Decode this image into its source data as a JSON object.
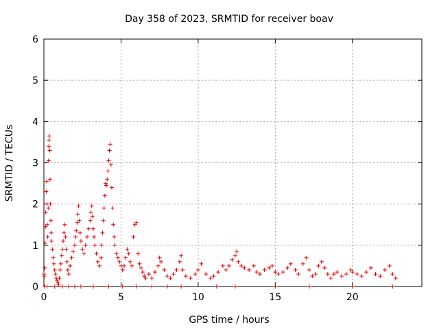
{
  "chart_data": {
    "type": "scatter",
    "title": "Day 358 of 2023, SRMTID for receiver boav",
    "xlabel": "GPS time / hours",
    "ylabel": "SRMTID / TECUs",
    "xlim": [
      0,
      24.5
    ],
    "ylim": [
      0,
      6
    ],
    "xticks": [
      0,
      5,
      10,
      15,
      20
    ],
    "yticks": [
      0,
      1,
      2,
      3,
      4,
      5,
      6
    ],
    "grid": true,
    "marker": "+",
    "color": "#e00000",
    "series": [
      {
        "name": "SRMTID",
        "points": [
          [
            0.0,
            0.3
          ],
          [
            0.02,
            0.25
          ],
          [
            0.05,
            0.45
          ],
          [
            0.08,
            1.05
          ],
          [
            0.1,
            1.45
          ],
          [
            0.12,
            1.8
          ],
          [
            0.15,
            2.3
          ],
          [
            0.18,
            2.55
          ],
          [
            0.2,
            2.0
          ],
          [
            0.22,
            1.5
          ],
          [
            0.25,
            1.2
          ],
          [
            0.28,
            1.9
          ],
          [
            0.3,
            3.05
          ],
          [
            0.32,
            3.4
          ],
          [
            0.33,
            3.55
          ],
          [
            0.35,
            3.65
          ],
          [
            0.38,
            3.3
          ],
          [
            0.4,
            2.6
          ],
          [
            0.42,
            2.0
          ],
          [
            0.45,
            1.6
          ],
          [
            0.48,
            1.3
          ],
          [
            0.5,
            1.1
          ],
          [
            0.55,
            0.9
          ],
          [
            0.6,
            0.7
          ],
          [
            0.65,
            0.55
          ],
          [
            0.7,
            0.4
          ],
          [
            0.75,
            0.3
          ],
          [
            0.8,
            0.2
          ],
          [
            0.85,
            0.15
          ],
          [
            0.9,
            0.1
          ],
          [
            0.95,
            0.05
          ],
          [
            1.0,
            0.2
          ],
          [
            1.05,
            0.4
          ],
          [
            1.1,
            0.55
          ],
          [
            1.15,
            0.75
          ],
          [
            1.2,
            0.9
          ],
          [
            1.25,
            1.1
          ],
          [
            1.3,
            1.3
          ],
          [
            1.35,
            1.5
          ],
          [
            1.4,
            1.2
          ],
          [
            1.45,
            0.9
          ],
          [
            1.5,
            0.6
          ],
          [
            1.55,
            0.4
          ],
          [
            1.6,
            0.3
          ],
          [
            1.7,
            0.5
          ],
          [
            1.8,
            0.7
          ],
          [
            1.9,
            0.85
          ],
          [
            2.0,
            1.0
          ],
          [
            2.05,
            1.2
          ],
          [
            2.1,
            1.35
          ],
          [
            2.15,
            1.55
          ],
          [
            2.2,
            1.75
          ],
          [
            2.25,
            1.95
          ],
          [
            2.3,
            1.6
          ],
          [
            2.35,
            1.3
          ],
          [
            2.4,
            1.1
          ],
          [
            2.5,
            0.9
          ],
          [
            2.6,
            0.8
          ],
          [
            2.7,
            1.0
          ],
          [
            2.8,
            1.2
          ],
          [
            2.9,
            1.4
          ],
          [
            3.0,
            1.6
          ],
          [
            3.05,
            1.8
          ],
          [
            3.1,
            1.95
          ],
          [
            3.15,
            1.7
          ],
          [
            3.2,
            1.4
          ],
          [
            3.25,
            1.2
          ],
          [
            3.3,
            1.0
          ],
          [
            3.4,
            0.8
          ],
          [
            3.5,
            0.6
          ],
          [
            3.6,
            0.5
          ],
          [
            3.7,
            0.7
          ],
          [
            3.75,
            1.0
          ],
          [
            3.8,
            1.3
          ],
          [
            3.85,
            1.6
          ],
          [
            3.9,
            1.9
          ],
          [
            3.95,
            2.2
          ],
          [
            4.0,
            2.5
          ],
          [
            4.05,
            2.45
          ],
          [
            4.1,
            2.6
          ],
          [
            4.15,
            2.8
          ],
          [
            4.2,
            3.05
          ],
          [
            4.25,
            3.3
          ],
          [
            4.3,
            3.45
          ],
          [
            4.35,
            2.95
          ],
          [
            4.4,
            2.4
          ],
          [
            4.45,
            1.9
          ],
          [
            4.5,
            1.5
          ],
          [
            4.55,
            1.2
          ],
          [
            4.6,
            1.0
          ],
          [
            4.7,
            0.8
          ],
          [
            4.8,
            0.7
          ],
          [
            4.9,
            0.6
          ],
          [
            5.0,
            0.5
          ],
          [
            5.1,
            0.4
          ],
          [
            5.2,
            0.5
          ],
          [
            5.3,
            0.7
          ],
          [
            5.4,
            0.9
          ],
          [
            5.5,
            0.8
          ],
          [
            5.6,
            0.6
          ],
          [
            5.7,
            0.5
          ],
          [
            5.8,
            1.2
          ],
          [
            5.9,
            1.5
          ],
          [
            6.0,
            1.55
          ],
          [
            6.1,
            0.8
          ],
          [
            6.2,
            0.55
          ],
          [
            6.3,
            0.45
          ],
          [
            6.4,
            0.35
          ],
          [
            6.5,
            0.25
          ],
          [
            6.6,
            0.2
          ],
          [
            6.8,
            0.3
          ],
          [
            7.0,
            0.2
          ],
          [
            7.2,
            0.35
          ],
          [
            7.4,
            0.5
          ],
          [
            7.5,
            0.7
          ],
          [
            7.6,
            0.6
          ],
          [
            7.8,
            0.4
          ],
          [
            8.0,
            0.25
          ],
          [
            8.2,
            0.2
          ],
          [
            8.4,
            0.3
          ],
          [
            8.6,
            0.4
          ],
          [
            8.8,
            0.6
          ],
          [
            8.9,
            0.75
          ],
          [
            9.0,
            0.4
          ],
          [
            9.2,
            0.25
          ],
          [
            9.5,
            0.2
          ],
          [
            9.8,
            0.3
          ],
          [
            10.0,
            0.4
          ],
          [
            10.2,
            0.55
          ],
          [
            10.5,
            0.3
          ],
          [
            10.8,
            0.2
          ],
          [
            11.0,
            0.25
          ],
          [
            11.3,
            0.35
          ],
          [
            11.6,
            0.5
          ],
          [
            11.8,
            0.4
          ],
          [
            12.0,
            0.5
          ],
          [
            12.2,
            0.65
          ],
          [
            12.4,
            0.75
          ],
          [
            12.5,
            0.85
          ],
          [
            12.6,
            0.6
          ],
          [
            12.8,
            0.5
          ],
          [
            13.0,
            0.45
          ],
          [
            13.3,
            0.4
          ],
          [
            13.6,
            0.5
          ],
          [
            13.8,
            0.35
          ],
          [
            14.0,
            0.3
          ],
          [
            14.3,
            0.4
          ],
          [
            14.6,
            0.45
          ],
          [
            14.8,
            0.5
          ],
          [
            15.0,
            0.35
          ],
          [
            15.2,
            0.3
          ],
          [
            15.5,
            0.35
          ],
          [
            15.8,
            0.45
          ],
          [
            16.0,
            0.55
          ],
          [
            16.3,
            0.4
          ],
          [
            16.5,
            0.3
          ],
          [
            16.8,
            0.55
          ],
          [
            17.0,
            0.7
          ],
          [
            17.2,
            0.4
          ],
          [
            17.4,
            0.25
          ],
          [
            17.6,
            0.3
          ],
          [
            17.8,
            0.5
          ],
          [
            18.0,
            0.6
          ],
          [
            18.2,
            0.45
          ],
          [
            18.4,
            0.3
          ],
          [
            18.6,
            0.2
          ],
          [
            18.8,
            0.3
          ],
          [
            19.0,
            0.35
          ],
          [
            19.3,
            0.25
          ],
          [
            19.6,
            0.3
          ],
          [
            19.9,
            0.4
          ],
          [
            20.0,
            0.35
          ],
          [
            20.3,
            0.3
          ],
          [
            20.6,
            0.25
          ],
          [
            20.9,
            0.35
          ],
          [
            21.2,
            0.45
          ],
          [
            21.5,
            0.3
          ],
          [
            21.8,
            0.25
          ],
          [
            22.1,
            0.4
          ],
          [
            22.4,
            0.5
          ],
          [
            22.6,
            0.3
          ],
          [
            22.8,
            0.2
          ],
          [
            0.05,
            0.0
          ],
          [
            0.2,
            0.0
          ],
          [
            0.7,
            0.0
          ],
          [
            1.2,
            0.0
          ],
          [
            1.6,
            0.0
          ],
          [
            2.0,
            0.0
          ],
          [
            2.4,
            0.0
          ],
          [
            3.2,
            0.0
          ],
          [
            4.2,
            0.0
          ],
          [
            5.1,
            0.0
          ],
          [
            6.0,
            0.0
          ],
          [
            7.0,
            0.0
          ],
          [
            8.0,
            0.0
          ],
          [
            8.9,
            0.0
          ],
          [
            11.2,
            0.0
          ],
          [
            12.4,
            0.0
          ],
          [
            15.0,
            0.0
          ],
          [
            17.2,
            0.0
          ],
          [
            20.0,
            0.0
          ],
          [
            22.6,
            0.0
          ]
        ]
      }
    ]
  }
}
